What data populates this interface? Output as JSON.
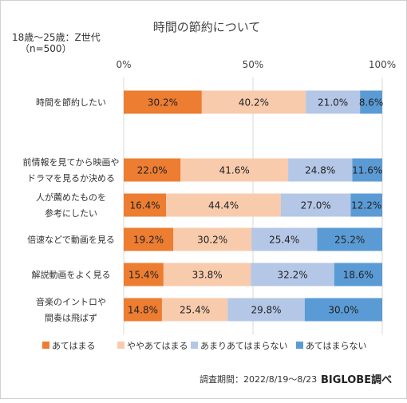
{
  "chart_data": {
    "type": "bar",
    "orientation": "horizontal",
    "stacked": true,
    "title": "時間の節約について",
    "subtitle": [
      "18歳〜25歳：Z世代",
      "（n=500）"
    ],
    "xlim": [
      0,
      100
    ],
    "x_ticks": [
      "0%",
      "50%",
      "100%"
    ],
    "grid": true,
    "legend_position": "bottom",
    "categories": [
      [
        "時間を節約したい"
      ],
      [
        "前情報を見てから映画や",
        "ドラマを見るか決める"
      ],
      [
        "人が薦めたものを",
        "参考にしたい"
      ],
      [
        "倍速などで動画を見る"
      ],
      [
        "解説動画をよく見る"
      ],
      [
        "音楽のイントロや",
        "間奏は飛ばず"
      ]
    ],
    "series": [
      {
        "name": "あてはまる",
        "color": "#ed7d31",
        "values": [
          30.2,
          22.0,
          16.4,
          19.2,
          15.4,
          14.8
        ],
        "labels": [
          "30.2%",
          "22.0%",
          "16.4%",
          "19.2%",
          "15.4%",
          "14.8%"
        ]
      },
      {
        "name": "ややあてはまる",
        "color": "#f8cbad",
        "values": [
          40.2,
          41.6,
          44.4,
          30.2,
          33.8,
          25.4
        ],
        "labels": [
          "40.2%",
          "41.6%",
          "44.4%",
          "30.2%",
          "33.8%",
          "25.4%"
        ]
      },
      {
        "name": "あまりあてはまらない",
        "color": "#b4c7e7",
        "values": [
          21.0,
          24.8,
          27.0,
          25.4,
          32.2,
          29.8
        ],
        "labels": [
          "21.0%",
          "24.8%",
          "27.0%",
          "25.4%",
          "32.2%",
          "29.8%"
        ]
      },
      {
        "name": "あてはまらない",
        "color": "#5b9bd5",
        "values": [
          8.6,
          11.6,
          12.2,
          25.2,
          18.6,
          30.0
        ],
        "labels": [
          "8.6%",
          "11.6%",
          "12.2%",
          "25.2%",
          "18.6%",
          "30.0%"
        ]
      }
    ]
  },
  "footer": {
    "period": "調査期間：2022/8/19〜8/23",
    "brand": "BIGLOBE調べ"
  }
}
